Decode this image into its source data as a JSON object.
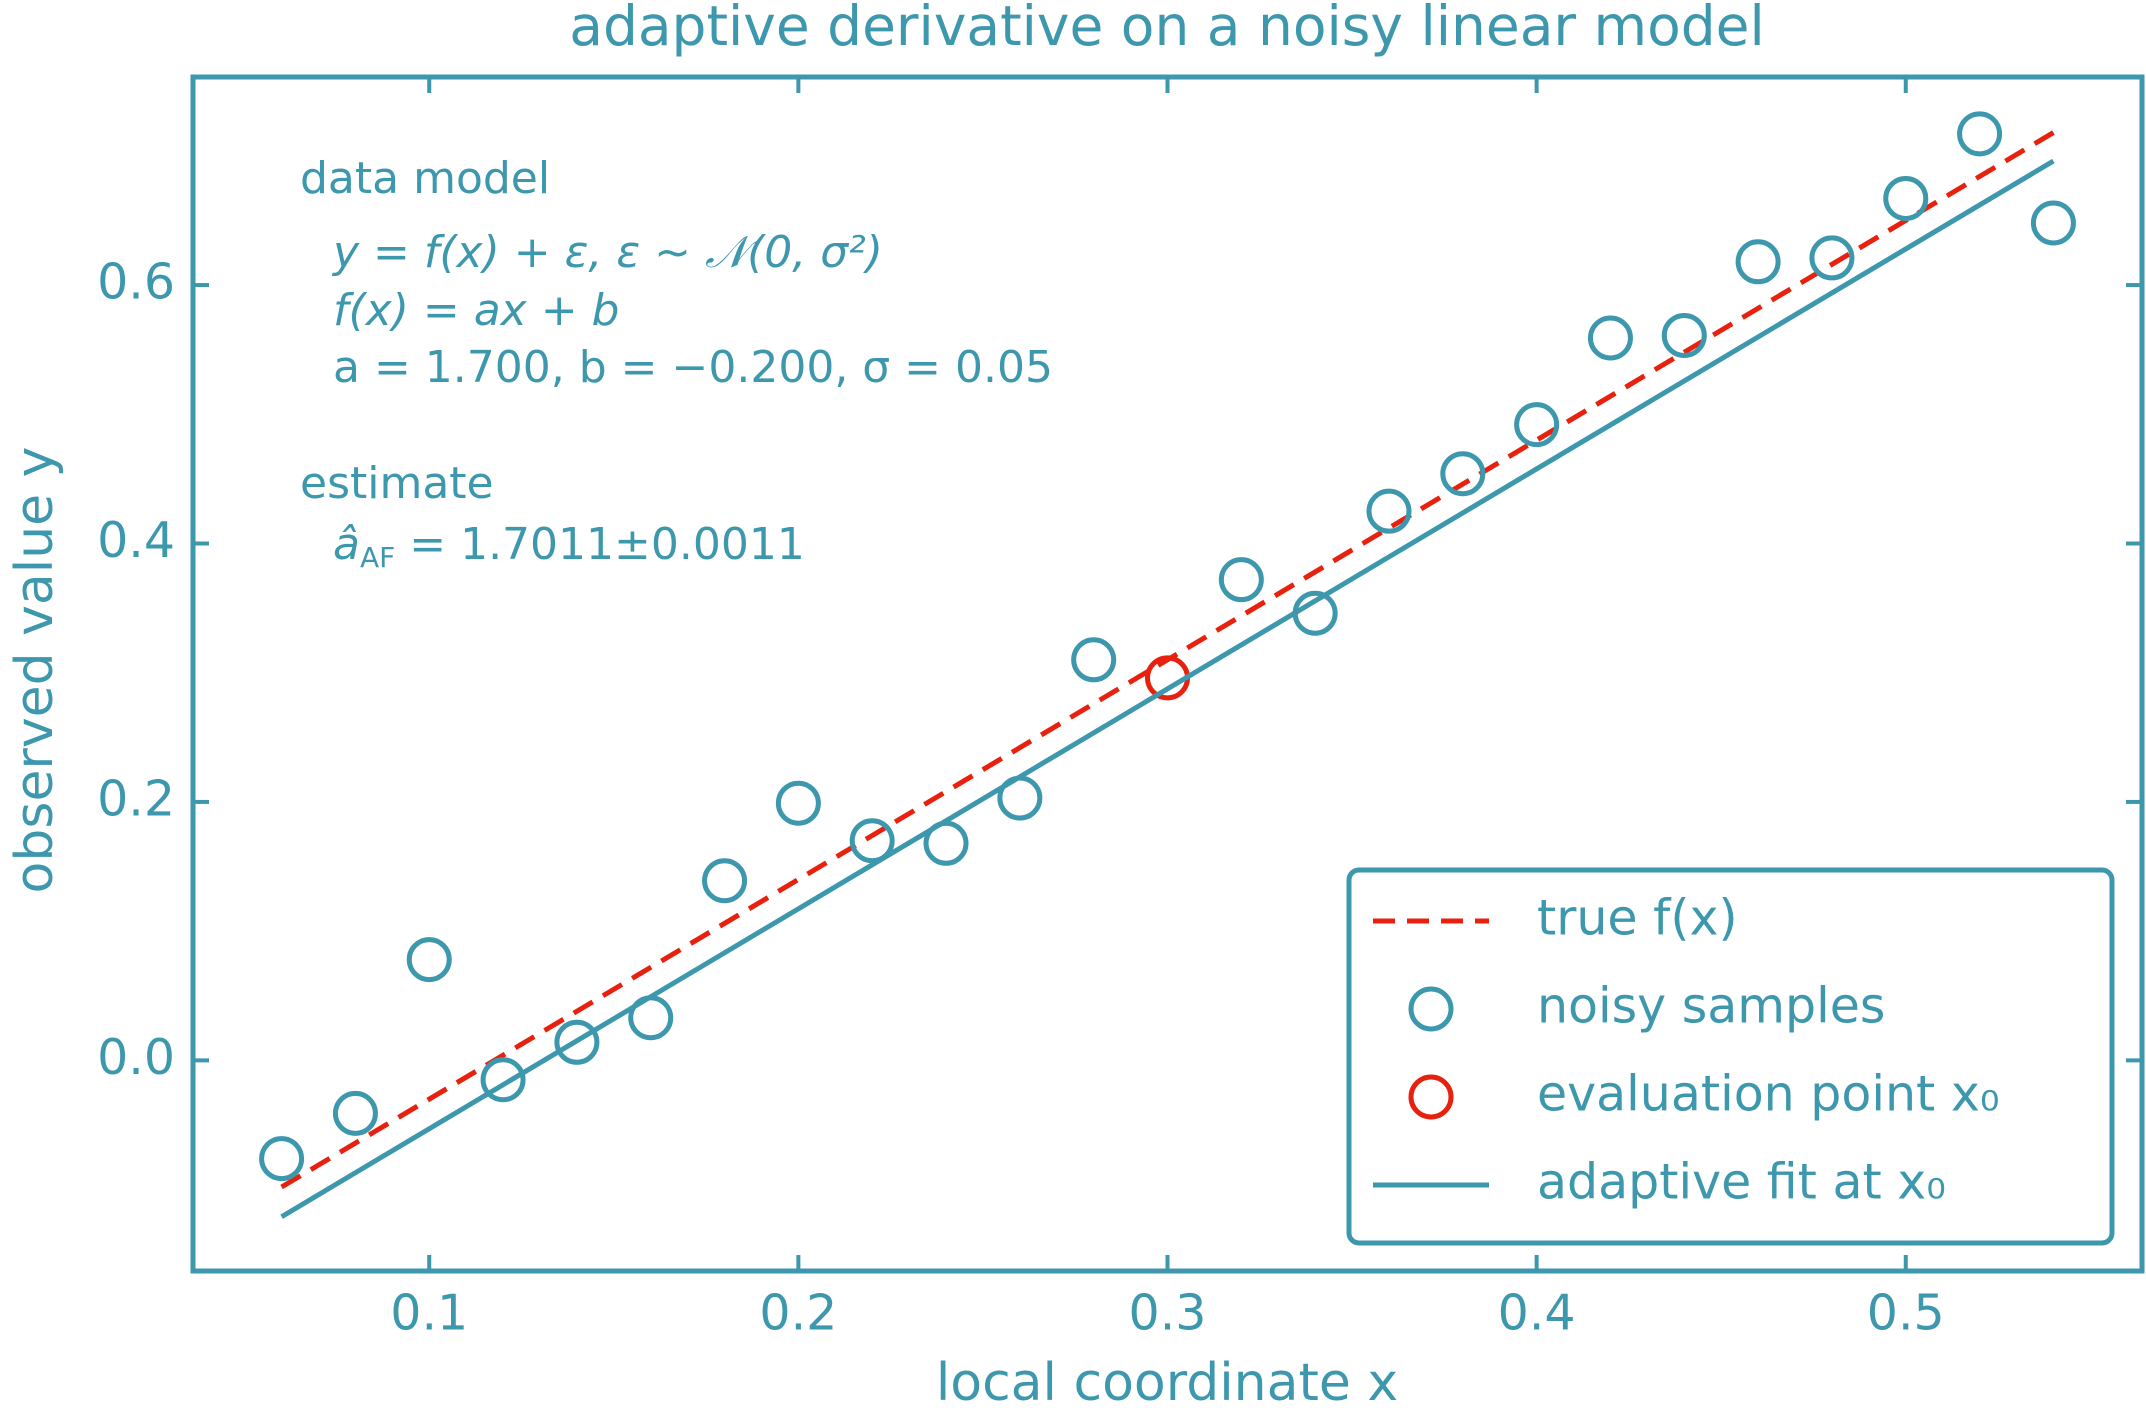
{
  "chart_data": {
    "type": "line",
    "title": "adaptive derivative on a noisy linear model",
    "xlabel": "local coordinate x",
    "ylabel": "observed value y",
    "xlim": [
      0.036,
      0.564
    ],
    "ylim": [
      -0.163,
      0.761
    ],
    "xticks": [
      0.1,
      0.2,
      0.3,
      0.4,
      0.5
    ],
    "yticks": [
      {
        "value": 0,
        "label": "0.0"
      },
      0.2,
      0.4,
      0.6
    ],
    "grid": false,
    "legend": "lower right",
    "annotations": {
      "model_heading": "data model",
      "model_lines": [
        "y = f(x) + ε,   ε ~ 𝒩(0, σ²)",
        "f(x) = ax + b",
        "a = 1.700,   b = −0.200,   σ = 0.05"
      ],
      "estimate_heading": "estimate",
      "estimate": {
        "base": "â",
        "sub": "AF",
        "tail": " = 1.7011±0.0011"
      }
    },
    "series": [
      {
        "name": "true f(x)",
        "color": "#e8210f",
        "mode": "dashed",
        "x": [
          0.06,
          0.54
        ],
        "values": [
          -0.098,
          0.718
        ]
      },
      {
        "name": "noisy samples",
        "color": "#3d97ad",
        "mode": "markers",
        "x": [
          0.06,
          0.08,
          0.1,
          0.12,
          0.14,
          0.16,
          0.18,
          0.2,
          0.22,
          0.24,
          0.26,
          0.28,
          0.32,
          0.34,
          0.36,
          0.38,
          0.4,
          0.42,
          0.44,
          0.46,
          0.48,
          0.5,
          0.52,
          0.54
        ],
        "values": [
          -0.076,
          -0.041,
          0.078,
          -0.015,
          0.014,
          0.033,
          0.139,
          0.199,
          0.17,
          0.168,
          0.203,
          0.31,
          0.372,
          0.346,
          0.425,
          0.454,
          0.492,
          0.559,
          0.561,
          0.618,
          0.621,
          0.667,
          0.717,
          0.648
        ]
      },
      {
        "name": "evaluation point x₀",
        "color": "#e8210f",
        "mode": "markers",
        "x": [
          0.3
        ],
        "values": [
          0.296
        ]
      },
      {
        "name": "adaptive fit at x₀",
        "color": "#3d97ad",
        "mode": "solid",
        "x": [
          0.06,
          0.54
        ],
        "values": [
          -0.121,
          0.696
        ]
      }
    ]
  }
}
